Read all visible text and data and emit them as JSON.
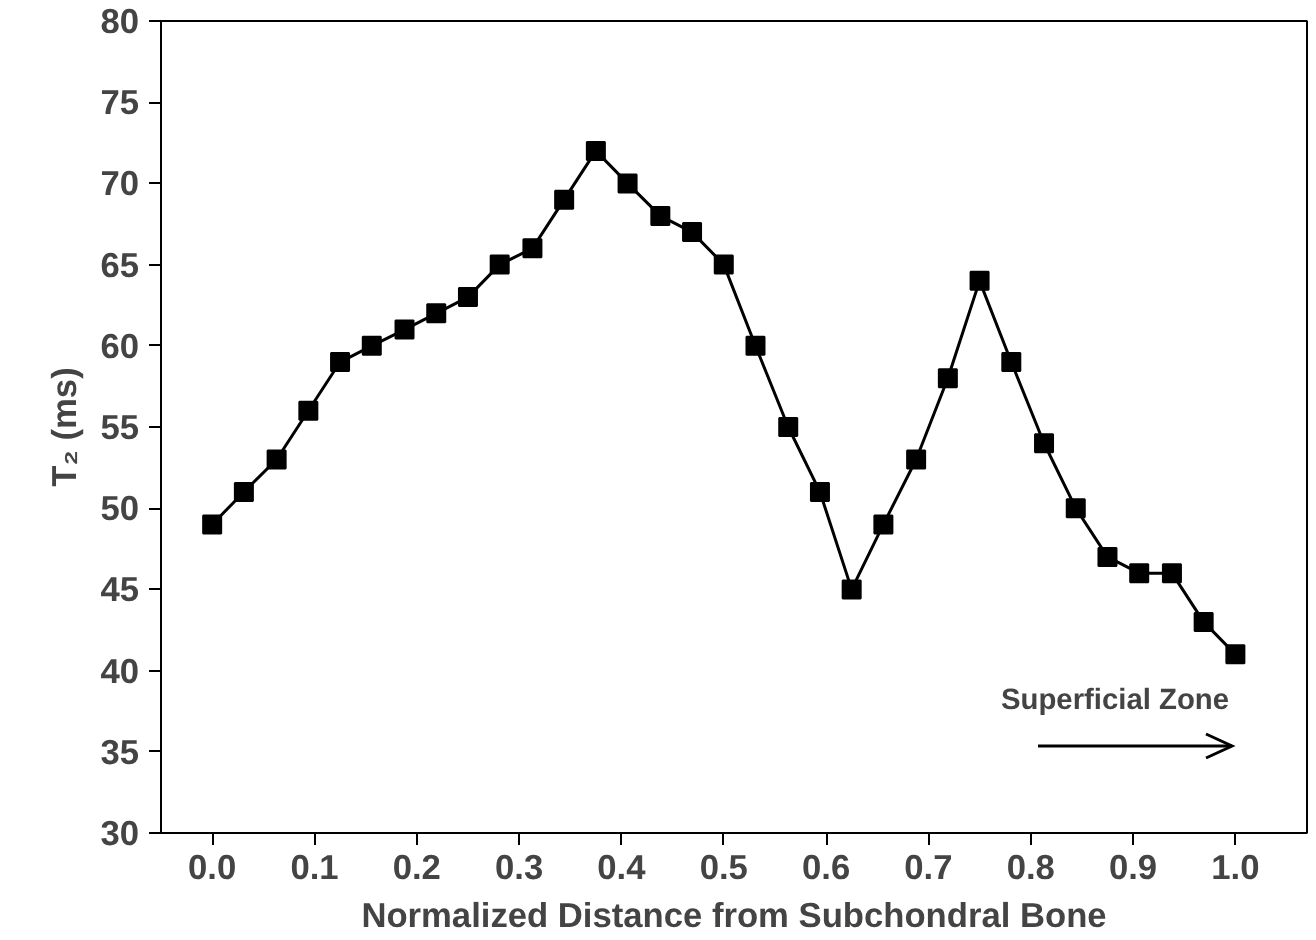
{
  "chart_data": {
    "type": "line",
    "xlabel": "Normalized Distance from Subchondral Bone",
    "ylabel": "T₂ (ms)",
    "x": [
      0,
      0.031,
      0.063,
      0.094,
      0.125,
      0.156,
      0.188,
      0.219,
      0.25,
      0.281,
      0.313,
      0.344,
      0.375,
      0.406,
      0.438,
      0.469,
      0.5,
      0.531,
      0.563,
      0.594,
      0.625,
      0.656,
      0.688,
      0.719,
      0.75,
      0.781,
      0.813,
      0.844,
      0.875,
      0.906,
      0.938,
      0.969,
      1.0
    ],
    "series": [
      {
        "color": "#000000",
        "values": [
          49,
          51,
          53,
          56,
          59,
          60,
          61,
          62,
          63,
          65,
          66,
          69,
          72,
          70,
          68,
          67,
          65,
          60,
          55,
          51,
          45,
          49,
          53,
          58,
          64,
          59,
          54,
          50,
          47,
          46,
          46,
          43,
          41
        ]
      }
    ],
    "xlim": [
      -0.05,
      1.07
    ],
    "ylim": [
      30,
      80
    ],
    "xticks": [
      {
        "value": 0,
        "label": "0.0"
      },
      0.1,
      0.2,
      0.3,
      0.4,
      0.5,
      0.6,
      0.7,
      0.8,
      0.9,
      {
        "value": 1,
        "label": "1.0"
      }
    ],
    "yticks": [
      30,
      35,
      40,
      45,
      50,
      55,
      60,
      65,
      70,
      75,
      80
    ],
    "marker": "square",
    "line_style": "solid",
    "annotations": [
      "Superficial Zone"
    ]
  }
}
